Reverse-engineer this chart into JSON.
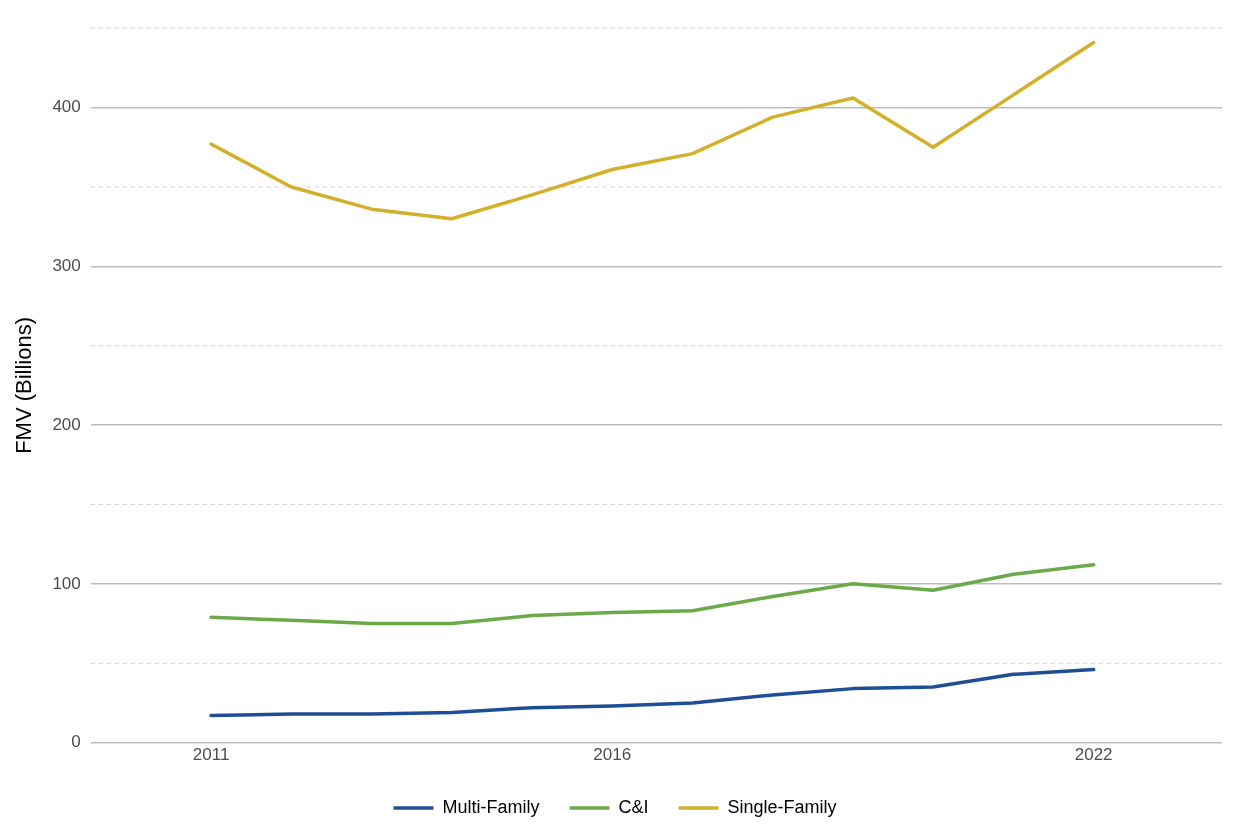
{
  "chart_data": {
    "type": "line",
    "ylabel": "FMV (Billions)",
    "x": [
      2011,
      2012,
      2013,
      2014,
      2015,
      2016,
      2017,
      2018,
      2019,
      2020,
      2021,
      2022
    ],
    "series": [
      {
        "name": "Multi-Family",
        "color": "#1f4e96",
        "values": [
          17,
          18,
          18,
          19,
          22,
          23,
          25,
          30,
          34,
          35,
          43,
          46
        ]
      },
      {
        "name": "C&I",
        "color": "#6aaa48",
        "values": [
          79,
          77,
          75,
          75,
          80,
          82,
          83,
          92,
          100,
          96,
          106,
          112
        ]
      },
      {
        "name": "Single-Family",
        "color": "#d4b02a",
        "values": [
          377,
          350,
          336,
          330,
          345,
          361,
          371,
          394,
          406,
          375,
          408,
          441
        ]
      }
    ],
    "xlim": [
      2009.5,
      2023.6
    ],
    "xticks": [
      2011,
      2016,
      2022
    ],
    "ylim": [
      0,
      450
    ],
    "yticks": [
      0,
      {
        "value": 50,
        "label": null
      },
      100,
      {
        "value": 150,
        "label": null
      },
      200,
      {
        "value": 250,
        "label": null
      },
      300,
      {
        "value": 350,
        "label": null
      },
      400,
      {
        "value": 450,
        "label": null
      }
    ],
    "grid": "y",
    "legend": "bottom",
    "marker": "none",
    "line_style": "solid"
  }
}
